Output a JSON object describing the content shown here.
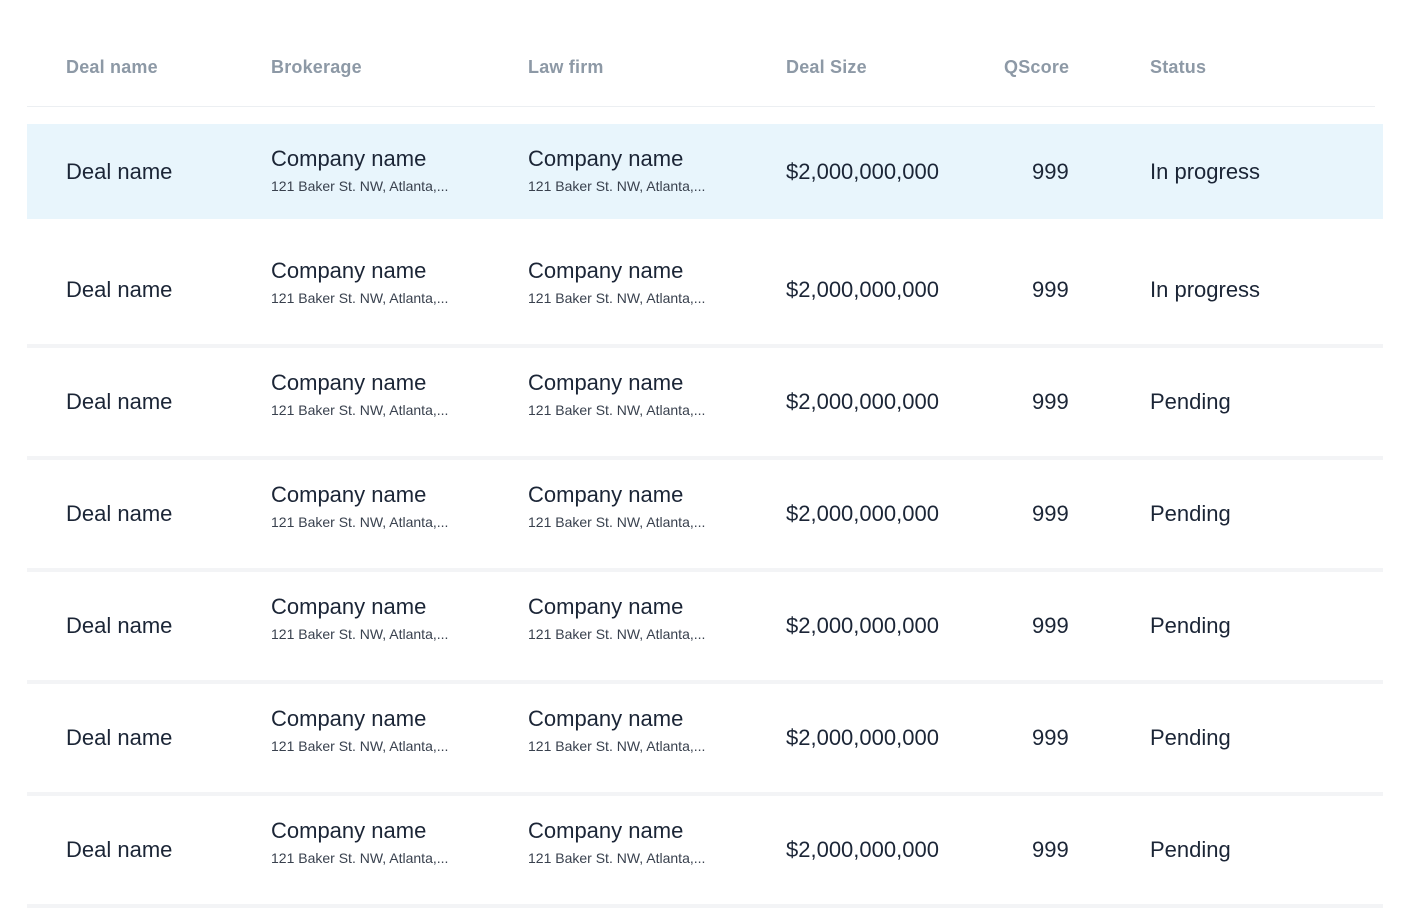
{
  "columns": {
    "deal_name": "Deal name",
    "brokerage": "Brokerage",
    "law_firm": "Law firm",
    "deal_size": "Deal Size",
    "qscore": "QScore",
    "status": "Status"
  },
  "rows": [
    {
      "deal_name": "Deal name",
      "brokerage_name": "Company name",
      "brokerage_address": "121 Baker St. NW, Atlanta,...",
      "law_firm_name": "Company name",
      "law_firm_address": "121 Baker St. NW, Atlanta,...",
      "deal_size": "$2,000,000,000",
      "qscore": "999",
      "status": "In progress",
      "selected": true
    },
    {
      "deal_name": "Deal name",
      "brokerage_name": "Company name",
      "brokerage_address": "121 Baker St. NW, Atlanta,...",
      "law_firm_name": "Company name",
      "law_firm_address": "121 Baker St. NW, Atlanta,...",
      "deal_size": "$2,000,000,000",
      "qscore": "999",
      "status": "In progress"
    },
    {
      "deal_name": "Deal name",
      "brokerage_name": "Company name",
      "brokerage_address": "121 Baker St. NW, Atlanta,...",
      "law_firm_name": "Company name",
      "law_firm_address": "121 Baker St. NW, Atlanta,...",
      "deal_size": "$2,000,000,000",
      "qscore": "999",
      "status": "Pending"
    },
    {
      "deal_name": "Deal name",
      "brokerage_name": "Company name",
      "brokerage_address": "121 Baker St. NW, Atlanta,...",
      "law_firm_name": "Company name",
      "law_firm_address": "121 Baker St. NW, Atlanta,...",
      "deal_size": "$2,000,000,000",
      "qscore": "999",
      "status": "Pending"
    },
    {
      "deal_name": "Deal name",
      "brokerage_name": "Company name",
      "brokerage_address": "121 Baker St. NW, Atlanta,...",
      "law_firm_name": "Company name",
      "law_firm_address": "121 Baker St. NW, Atlanta,...",
      "deal_size": "$2,000,000,000",
      "qscore": "999",
      "status": "Pending"
    },
    {
      "deal_name": "Deal name",
      "brokerage_name": "Company name",
      "brokerage_address": "121 Baker St. NW, Atlanta,...",
      "law_firm_name": "Company name",
      "law_firm_address": "121 Baker St. NW, Atlanta,...",
      "deal_size": "$2,000,000,000",
      "qscore": "999",
      "status": "Pending"
    },
    {
      "deal_name": "Deal name",
      "brokerage_name": "Company name",
      "brokerage_address": "121 Baker St. NW, Atlanta,...",
      "law_firm_name": "Company name",
      "law_firm_address": "121 Baker St. NW, Atlanta,...",
      "deal_size": "$2,000,000,000",
      "qscore": "999",
      "status": "Pending"
    }
  ],
  "colors": {
    "selected_row_bg": "#e8f5fc",
    "header_text": "#8d99a6",
    "body_text": "#1b2536"
  }
}
